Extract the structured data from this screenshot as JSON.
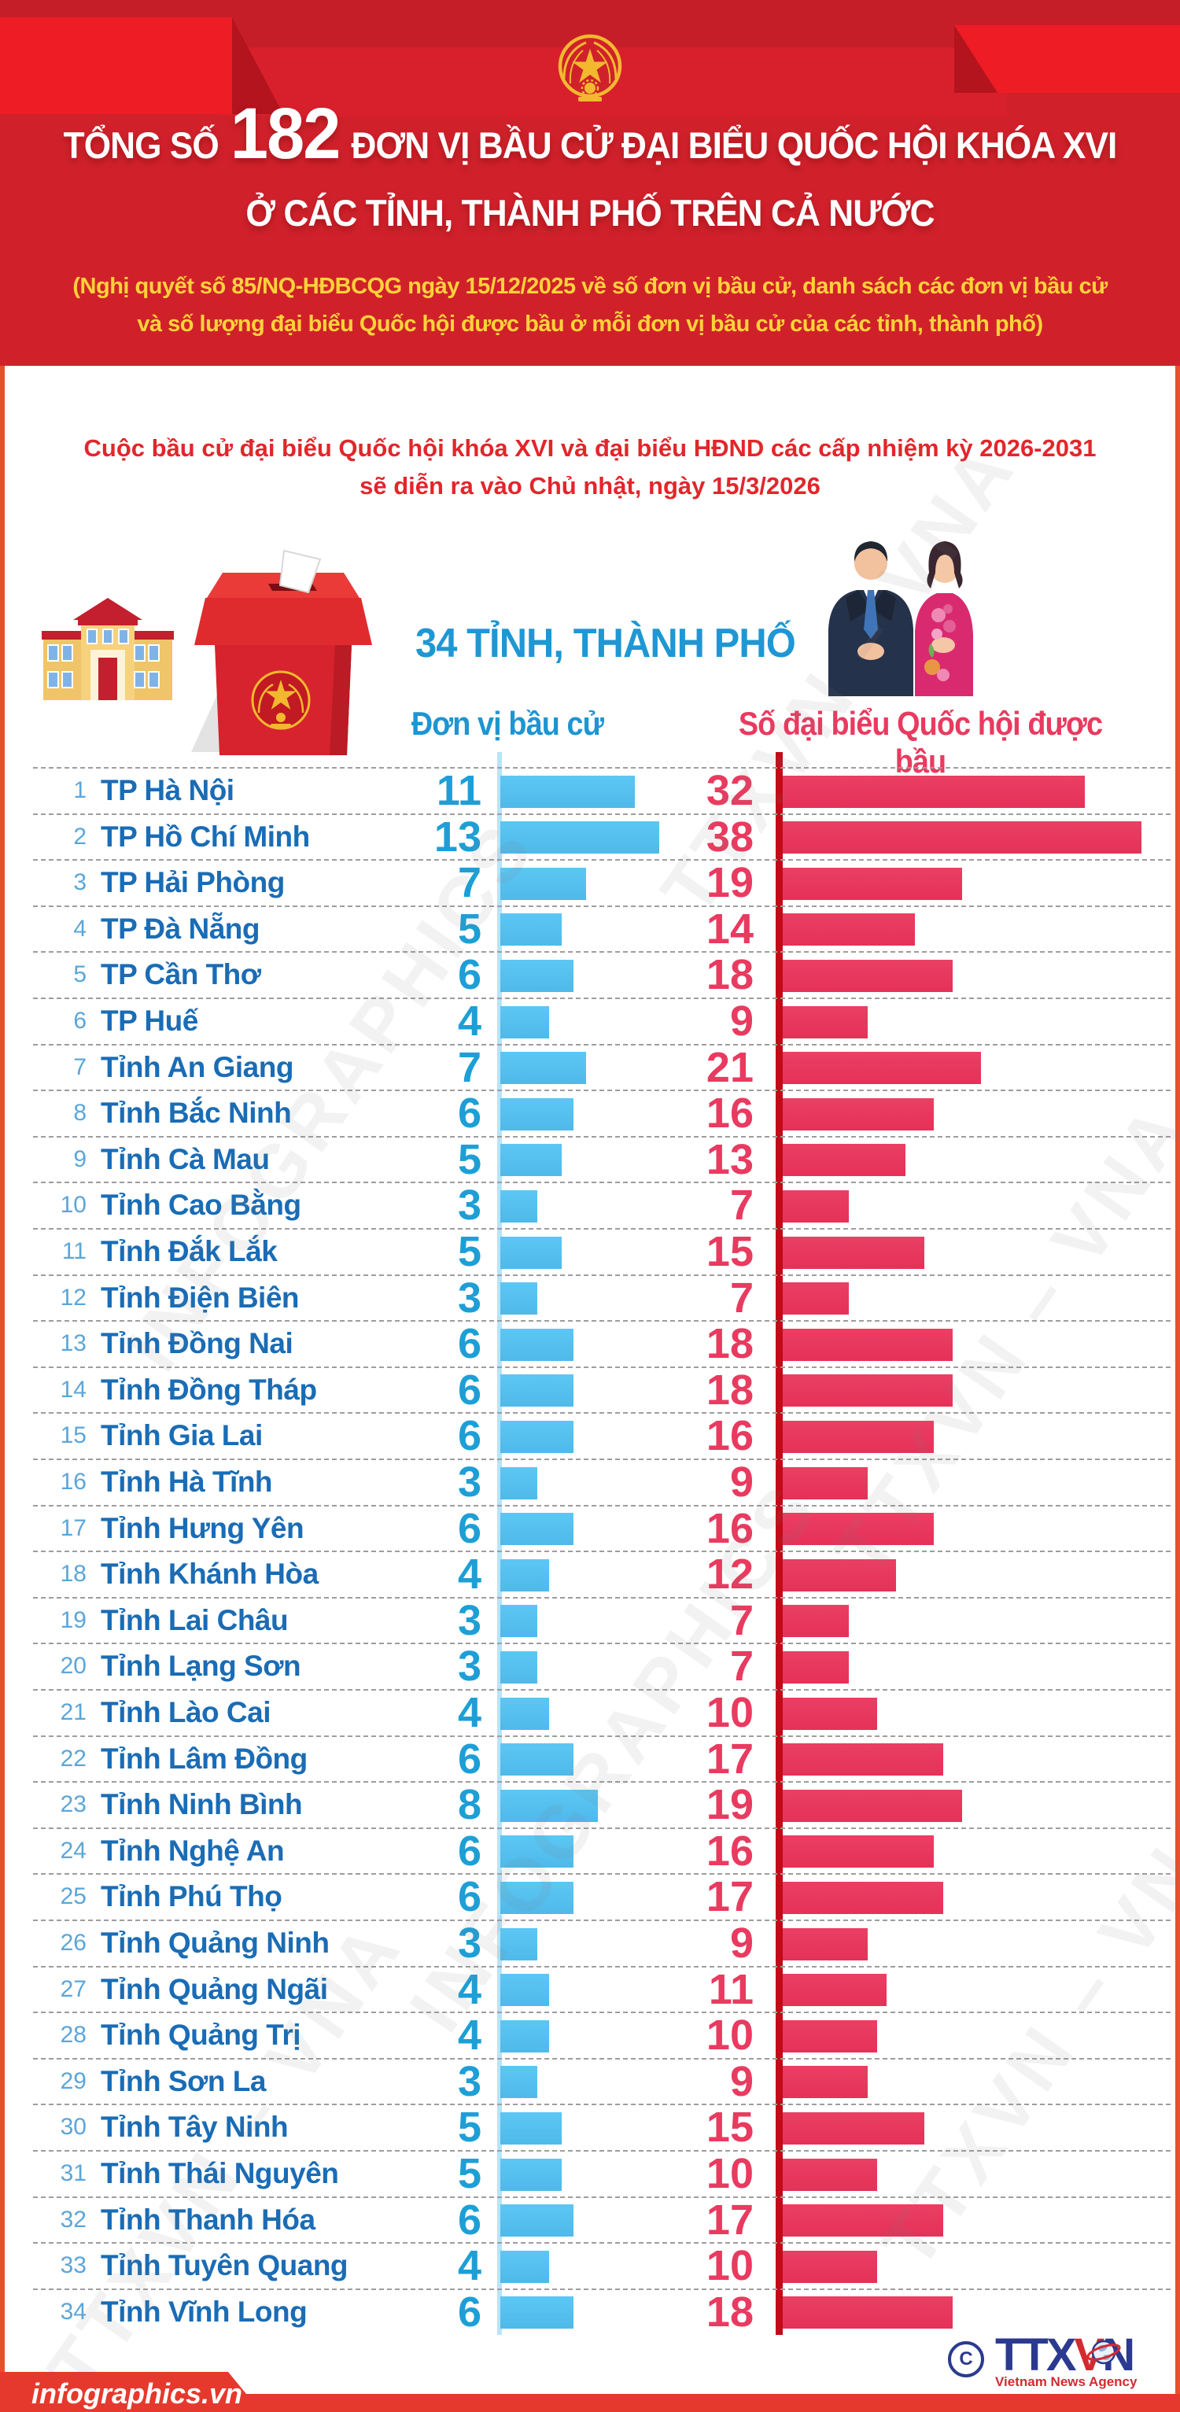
{
  "header": {
    "title_prefix": "TỔNG SỐ",
    "title_number": "182",
    "title_suffix": "ĐƠN VỊ BẦU CỬ ĐẠI BIỂU QUỐC HỘI KHÓA XVI",
    "title_line2": "Ở CÁC TỈNH, THÀNH PHỐ TRÊN CẢ NƯỚC",
    "note_line1": "(Nghị quyết số 85/NQ-HĐBCQG ngày 15/12/2025 về số đơn vị bầu cử, danh sách các đơn vị bầu cử",
    "note_line2": "và số lượng đại biểu Quốc hội được bầu ở mỗi đơn vị bầu cử của các tỉnh, thành phố)"
  },
  "intro": {
    "line1": "Cuộc bầu cử đại biểu Quốc hội khóa XVI và đại biểu HĐND các cấp nhiệm kỳ 2026-2031",
    "line2": "sẽ diễn ra vào Chủ nhật, ngày 15/3/2026"
  },
  "summary": {
    "provinces_label": "34 TỈNH, THÀNH PHỐ"
  },
  "columns": {
    "units_label": "Đơn vị bầu cử",
    "deputies_label": "Số đại biểu Quốc hội được bầu"
  },
  "chart_data": {
    "type": "bar",
    "orientation": "horizontal",
    "title": "Tổng số 182 đơn vị bầu cử đại biểu Quốc hội khóa XVI ở các tỉnh, thành phố trên cả nước",
    "categories": [
      "TP Hà Nội",
      "TP Hồ Chí Minh",
      "TP Hải Phòng",
      "TP Đà Nẵng",
      "TP Cần Thơ",
      "TP Huế",
      "Tỉnh An Giang",
      "Tỉnh Bắc Ninh",
      "Tỉnh Cà Mau",
      "Tỉnh Cao Bằng",
      "Tỉnh Đắk Lắk",
      "Tỉnh Điện Biên",
      "Tỉnh Đồng Nai",
      "Tỉnh Đồng Tháp",
      "Tỉnh Gia Lai",
      "Tỉnh Hà Tĩnh",
      "Tỉnh Hưng Yên",
      "Tỉnh Khánh Hòa",
      "Tỉnh Lai Châu",
      "Tỉnh Lạng Sơn",
      "Tỉnh Lào Cai",
      "Tỉnh Lâm Đồng",
      "Tỉnh Ninh Bình",
      "Tỉnh Nghệ An",
      "Tỉnh Phú Thọ",
      "Tỉnh Quảng Ninh",
      "Tỉnh Quảng Ngãi",
      "Tỉnh Quảng Trị",
      "Tỉnh Sơn La",
      "Tỉnh Tây Ninh",
      "Tỉnh Thái Nguyên",
      "Tỉnh Thanh Hóa",
      "Tỉnh Tuyên Quang",
      "Tỉnh Vĩnh Long"
    ],
    "series": [
      {
        "name": "Đơn vị bầu cử",
        "color": "#57c2f2",
        "values": [
          11,
          13,
          7,
          5,
          6,
          4,
          7,
          6,
          5,
          3,
          5,
          3,
          6,
          6,
          6,
          3,
          6,
          4,
          3,
          3,
          4,
          6,
          8,
          6,
          6,
          3,
          4,
          4,
          3,
          5,
          5,
          6,
          4,
          6
        ]
      },
      {
        "name": "Số đại biểu Quốc hội được bầu",
        "color": "#e93a5f",
        "values": [
          32,
          38,
          19,
          14,
          18,
          9,
          21,
          16,
          13,
          7,
          15,
          7,
          18,
          18,
          16,
          9,
          16,
          12,
          7,
          7,
          10,
          17,
          19,
          16,
          17,
          9,
          11,
          10,
          9,
          15,
          10,
          17,
          10,
          18
        ]
      }
    ],
    "totals": {
      "units": 182,
      "provinces": 34
    },
    "legend_position": "top",
    "grid": false
  },
  "watermarks": [
    "TTXVN – VNA",
    "INFOGRAPHICS"
  ],
  "footer": {
    "site": "infographics.vn",
    "copyright": "C",
    "logo_t1": "TT",
    "logo_x": "X",
    "logo_v": "V",
    "logo_n": "N",
    "agency_name": "Vietnam News Agency"
  },
  "colors": {
    "header_red": "#d0212b",
    "ribbon_bright": "#ee1c25",
    "emblem_gold": "#f2b92f",
    "note_yellow": "#ffd23a",
    "intro_red": "#e2262b",
    "name_blue": "#1a6cb5",
    "value_blue": "#1d9fd6",
    "bar_blue": "#57c2f2",
    "axis_blue": "#b7e4f8",
    "value_red": "#e93a5f",
    "axis_red": "#c20a18",
    "strip_orange": "#e85029",
    "footer_red": "#e6392d",
    "logo_navy": "#2b3a8f"
  }
}
